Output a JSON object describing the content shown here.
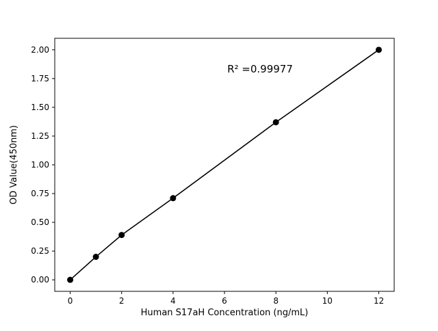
{
  "chart_data": {
    "type": "line",
    "title": "",
    "annotation": "R² =0.99977",
    "xlabel": "Human S17aH Concentration (ng/mL)",
    "ylabel": "OD Value(450nm)",
    "x": [
      0,
      1,
      2,
      4,
      8,
      12
    ],
    "y": [
      0.0,
      0.2,
      0.39,
      0.71,
      1.37,
      2.0
    ],
    "xlim": [
      -0.6,
      12.6
    ],
    "ylim": [
      -0.1,
      2.1
    ],
    "xticks": [
      0,
      2,
      4,
      6,
      8,
      10,
      12
    ],
    "yticks": [
      0.0,
      0.25,
      0.5,
      0.75,
      1.0,
      1.25,
      1.5,
      1.75,
      2.0
    ],
    "ytick_decimals": 2,
    "legend": "none",
    "grid": "off",
    "line_color": "#000000",
    "marker_color": "#000000",
    "marker_size": 4.5,
    "background_color": "#ffffff",
    "annotation_xy": [
      6.1,
      1.84
    ]
  }
}
